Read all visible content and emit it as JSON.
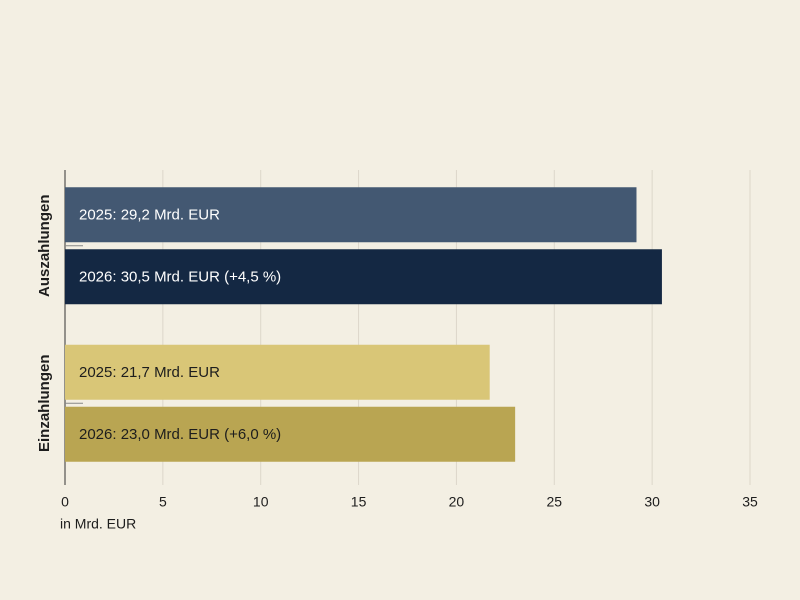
{
  "chart_data": {
    "type": "bar",
    "orientation": "horizontal",
    "categories": [
      "Auszahlungen",
      "Einzahlungen"
    ],
    "series": [
      {
        "values": [
          29.2,
          21.7
        ],
        "value_labels": [
          "2025: 29,2 Mrd. EUR",
          "2025: 21,7 Mrd. EUR"
        ],
        "colors": [
          "#435872",
          "#d9c677"
        ]
      },
      {
        "values": [
          30.5,
          23.0
        ],
        "value_labels": [
          "2026: 30,5 Mrd. EUR (+4,5 %)",
          "2026: 23,0 Mrd. EUR (+6,0 %)"
        ],
        "colors": [
          "#142843",
          "#b9a552"
        ]
      }
    ],
    "x_label": "in Mrd. EUR",
    "xlim": [
      0,
      35
    ],
    "xticks": [
      0,
      5,
      10,
      15,
      20,
      25,
      30,
      35
    ],
    "grid": true
  }
}
